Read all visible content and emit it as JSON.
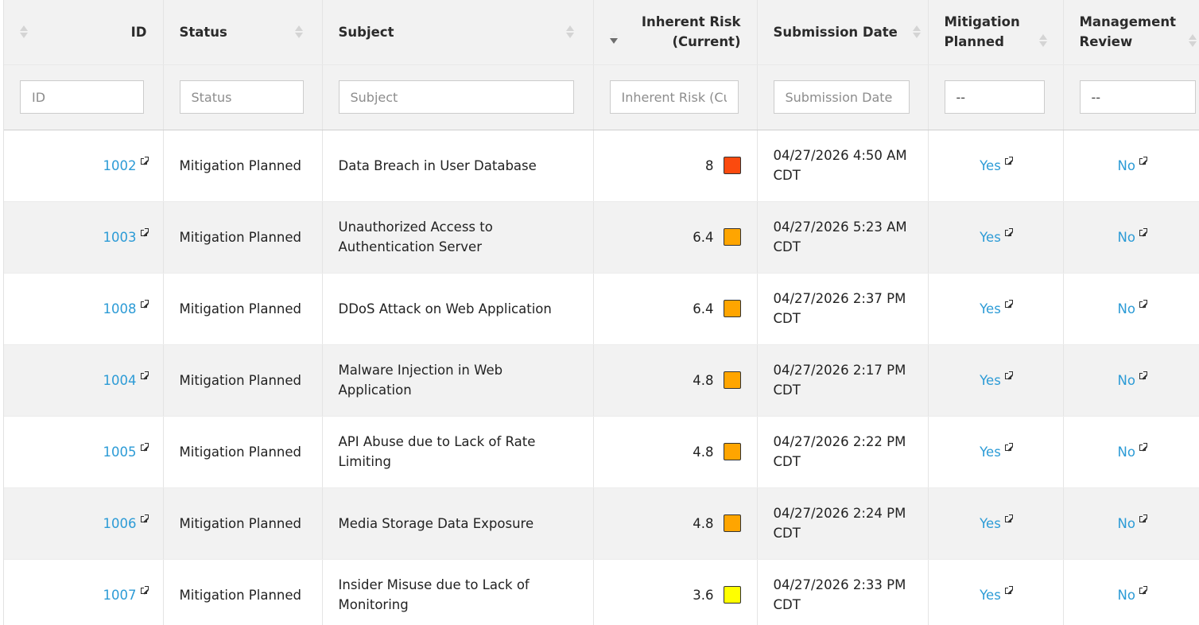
{
  "table": {
    "columns": [
      {
        "key": "id",
        "label": "ID",
        "filter_placeholder": "ID"
      },
      {
        "key": "status",
        "label": "Status",
        "filter_placeholder": "Status"
      },
      {
        "key": "subject",
        "label": "Subject",
        "filter_placeholder": "Subject"
      },
      {
        "key": "risk",
        "label_line1": "Inherent Risk",
        "label_line2": "(Current)",
        "filter_placeholder": "Inherent Risk (Current)"
      },
      {
        "key": "date",
        "label": "Submission Date",
        "filter_placeholder": "Submission Date"
      },
      {
        "key": "mitigation",
        "label_line1": "Mitigation",
        "label_line2": "Planned",
        "filter_value": "--"
      },
      {
        "key": "review",
        "label_line1": "Management",
        "label_line2": "Review",
        "filter_value": "--"
      }
    ],
    "sorted_by": "risk",
    "sort_direction": "descending",
    "rows": [
      {
        "id": "1002",
        "status": "Mitigation Planned",
        "subject": "Data Breach in User Database",
        "risk": "8",
        "risk_color": "#fb4a0e",
        "date_line1": "04/27/2026 4:50 AM",
        "date_line2": "CDT",
        "mitigation": "Yes",
        "review": "No"
      },
      {
        "id": "1003",
        "status": "Mitigation Planned",
        "subject": "Unauthorized Access to Authentication Server",
        "risk": "6.4",
        "risk_color": "#ffa500",
        "date_line1": "04/27/2026 5:23 AM",
        "date_line2": "CDT",
        "mitigation": "Yes",
        "review": "No"
      },
      {
        "id": "1008",
        "status": "Mitigation Planned",
        "subject": "DDoS Attack on Web Application",
        "risk": "6.4",
        "risk_color": "#ffa500",
        "date_line1": "04/27/2026 2:37 PM",
        "date_line2": "CDT",
        "mitigation": "Yes",
        "review": "No"
      },
      {
        "id": "1004",
        "status": "Mitigation Planned",
        "subject": "Malware Injection in Web Application",
        "risk": "4.8",
        "risk_color": "#ffa500",
        "date_line1": "04/27/2026 2:17 PM",
        "date_line2": "CDT",
        "mitigation": "Yes",
        "review": "No"
      },
      {
        "id": "1005",
        "status": "Mitigation Planned",
        "subject": "API Abuse due to Lack of Rate Limiting",
        "risk": "4.8",
        "risk_color": "#ffa500",
        "date_line1": "04/27/2026 2:22 PM",
        "date_line2": "CDT",
        "mitigation": "Yes",
        "review": "No"
      },
      {
        "id": "1006",
        "status": "Mitigation Planned",
        "subject": "Media Storage Data Exposure",
        "risk": "4.8",
        "risk_color": "#ffa500",
        "date_line1": "04/27/2026 2:24 PM",
        "date_line2": "CDT",
        "mitigation": "Yes",
        "review": "No"
      },
      {
        "id": "1007",
        "status": "Mitigation Planned",
        "subject": "Insider Misuse due to Lack of Monitoring",
        "risk": "3.6",
        "risk_color": "#ffff00",
        "date_line1": "04/27/2026 2:33 PM",
        "date_line2": "CDT",
        "mitigation": "Yes",
        "review": "No"
      }
    ]
  }
}
